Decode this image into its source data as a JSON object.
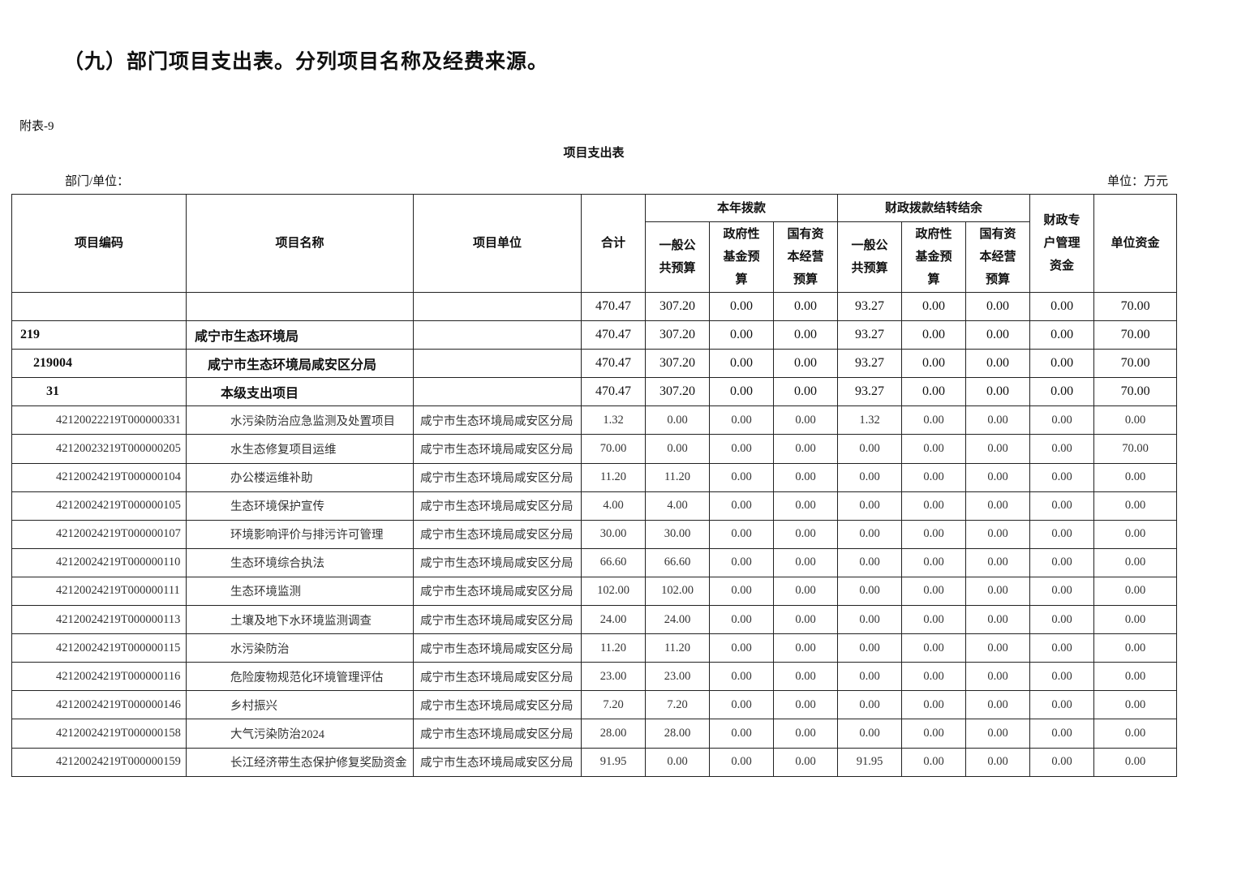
{
  "heading": "（九）部门项目支出表。分列项目名称及经费来源。",
  "annex_label": "附表-9",
  "table_title": "项目支出表",
  "dept_label": "部门/单位：",
  "unit_label": "单位：万元",
  "headers": {
    "code": "项目编码",
    "name": "项目名称",
    "unit": "项目单位",
    "total": "合计",
    "current_year": "本年拨款",
    "carryover": "财政拨款结转结余",
    "special_account": "财政专户管理资金",
    "unit_funds": "单位资金",
    "general_public": "一般公共预算",
    "gov_fund": "政府性基金预算",
    "state_capital": "国有资本经营预算",
    "general_public_2": "一般公共预算",
    "gov_fund_2": "政府性基金预算",
    "state_capital_2": "国有资本经营预算"
  },
  "rows": [
    {
      "level": 0,
      "code": "",
      "name": "",
      "unit": "",
      "values": [
        "470.47",
        "307.20",
        "0.00",
        "0.00",
        "93.27",
        "0.00",
        "0.00",
        "0.00",
        "70.00"
      ]
    },
    {
      "level": 0,
      "code": "219",
      "name": "咸宁市生态环境局",
      "unit": "",
      "values": [
        "470.47",
        "307.20",
        "0.00",
        "0.00",
        "93.27",
        "0.00",
        "0.00",
        "0.00",
        "70.00"
      ]
    },
    {
      "level": 1,
      "code": "219004",
      "name": "咸宁市生态环境局咸安区分局",
      "unit": "",
      "values": [
        "470.47",
        "307.20",
        "0.00",
        "0.00",
        "93.27",
        "0.00",
        "0.00",
        "0.00",
        "70.00"
      ]
    },
    {
      "level": 2,
      "code": "31",
      "name": "本级支出项目",
      "unit": "",
      "values": [
        "470.47",
        "307.20",
        "0.00",
        "0.00",
        "93.27",
        "0.00",
        "0.00",
        "0.00",
        "70.00"
      ]
    },
    {
      "level": 3,
      "code": "42120022219T000000331",
      "name": "水污染防治应急监测及处置项目",
      "unit": "咸宁市生态环境局咸安区分局",
      "values": [
        "1.32",
        "0.00",
        "0.00",
        "0.00",
        "1.32",
        "0.00",
        "0.00",
        "0.00",
        "0.00"
      ]
    },
    {
      "level": 3,
      "code": "42120023219T000000205",
      "name": "水生态修复项目运维",
      "unit": "咸宁市生态环境局咸安区分局",
      "values": [
        "70.00",
        "0.00",
        "0.00",
        "0.00",
        "0.00",
        "0.00",
        "0.00",
        "0.00",
        "70.00"
      ]
    },
    {
      "level": 3,
      "code": "42120024219T000000104",
      "name": "办公楼运维补助",
      "unit": "咸宁市生态环境局咸安区分局",
      "values": [
        "11.20",
        "11.20",
        "0.00",
        "0.00",
        "0.00",
        "0.00",
        "0.00",
        "0.00",
        "0.00"
      ]
    },
    {
      "level": 3,
      "code": "42120024219T000000105",
      "name": "生态环境保护宣传",
      "unit": "咸宁市生态环境局咸安区分局",
      "values": [
        "4.00",
        "4.00",
        "0.00",
        "0.00",
        "0.00",
        "0.00",
        "0.00",
        "0.00",
        "0.00"
      ]
    },
    {
      "level": 3,
      "code": "42120024219T000000107",
      "name": "环境影响评价与排污许可管理",
      "unit": "咸宁市生态环境局咸安区分局",
      "values": [
        "30.00",
        "30.00",
        "0.00",
        "0.00",
        "0.00",
        "0.00",
        "0.00",
        "0.00",
        "0.00"
      ]
    },
    {
      "level": 3,
      "code": "42120024219T000000110",
      "name": "生态环境综合执法",
      "unit": "咸宁市生态环境局咸安区分局",
      "values": [
        "66.60",
        "66.60",
        "0.00",
        "0.00",
        "0.00",
        "0.00",
        "0.00",
        "0.00",
        "0.00"
      ]
    },
    {
      "level": 3,
      "code": "42120024219T000000111",
      "name": "生态环境监测",
      "unit": "咸宁市生态环境局咸安区分局",
      "values": [
        "102.00",
        "102.00",
        "0.00",
        "0.00",
        "0.00",
        "0.00",
        "0.00",
        "0.00",
        "0.00"
      ]
    },
    {
      "level": 3,
      "code": "42120024219T000000113",
      "name": "土壤及地下水环境监测调查",
      "unit": "咸宁市生态环境局咸安区分局",
      "values": [
        "24.00",
        "24.00",
        "0.00",
        "0.00",
        "0.00",
        "0.00",
        "0.00",
        "0.00",
        "0.00"
      ]
    },
    {
      "level": 3,
      "code": "42120024219T000000115",
      "name": "水污染防治",
      "unit": "咸宁市生态环境局咸安区分局",
      "values": [
        "11.20",
        "11.20",
        "0.00",
        "0.00",
        "0.00",
        "0.00",
        "0.00",
        "0.00",
        "0.00"
      ]
    },
    {
      "level": 3,
      "code": "42120024219T000000116",
      "name": "危险废物规范化环境管理评估",
      "unit": "咸宁市生态环境局咸安区分局",
      "values": [
        "23.00",
        "23.00",
        "0.00",
        "0.00",
        "0.00",
        "0.00",
        "0.00",
        "0.00",
        "0.00"
      ]
    },
    {
      "level": 3,
      "code": "42120024219T000000146",
      "name": "乡村振兴",
      "unit": "咸宁市生态环境局咸安区分局",
      "values": [
        "7.20",
        "7.20",
        "0.00",
        "0.00",
        "0.00",
        "0.00",
        "0.00",
        "0.00",
        "0.00"
      ]
    },
    {
      "level": 3,
      "code": "42120024219T000000158",
      "name": "大气污染防治2024",
      "unit": "咸宁市生态环境局咸安区分局",
      "values": [
        "28.00",
        "28.00",
        "0.00",
        "0.00",
        "0.00",
        "0.00",
        "0.00",
        "0.00",
        "0.00"
      ]
    },
    {
      "level": 3,
      "code": "42120024219T000000159",
      "name": "长江经济带生态保护修复奖励资金",
      "unit": "咸宁市生态环境局咸安区分局",
      "values": [
        "91.95",
        "0.00",
        "0.00",
        "0.00",
        "91.95",
        "0.00",
        "0.00",
        "0.00",
        "0.00"
      ]
    }
  ]
}
